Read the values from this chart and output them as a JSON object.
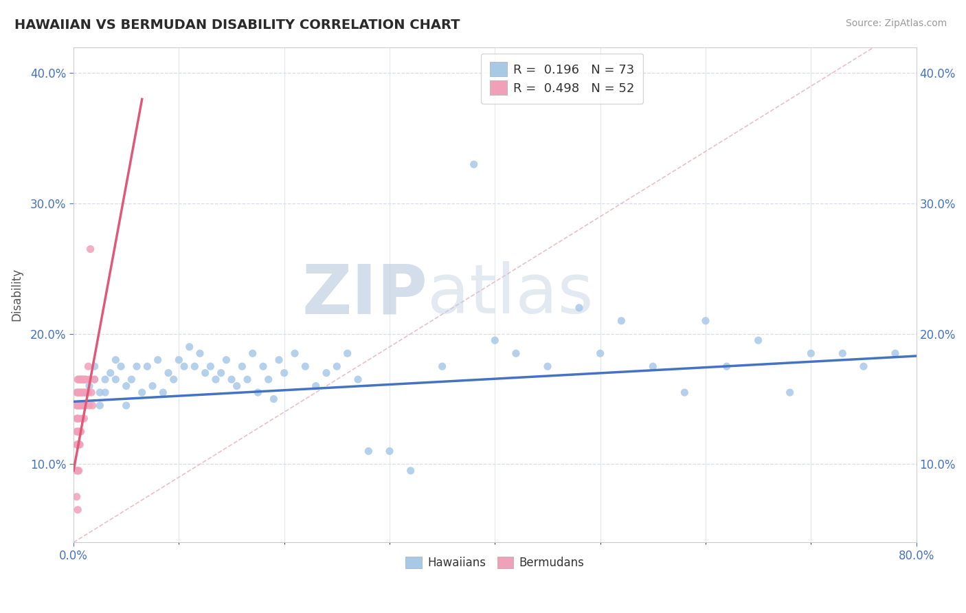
{
  "title": "HAWAIIAN VS BERMUDAN DISABILITY CORRELATION CHART",
  "source": "Source: ZipAtlas.com",
  "ylabel": "Disability",
  "legend_hawaiians": "Hawaiians",
  "legend_bermudans": "Bermudans",
  "R_hawaiians": 0.196,
  "N_hawaiians": 73,
  "R_bermudans": 0.498,
  "N_bermudans": 52,
  "xlim": [
    0.0,
    0.8
  ],
  "ylim": [
    0.04,
    0.42
  ],
  "yticks": [
    0.1,
    0.2,
    0.3,
    0.4
  ],
  "ytick_labels": [
    "10.0%",
    "20.0%",
    "30.0%",
    "40.0%"
  ],
  "color_hawaiians": "#a8c8e8",
  "color_bermudans": "#f0a0b8",
  "trendline_hawaiians": "#4472c4",
  "trendline_bermudans": "#e05878",
  "watermark_zip": "ZIP",
  "watermark_atlas": "atlas",
  "watermark_color_zip": "#c8d4e8",
  "watermark_color_atlas": "#b8cce0",
  "grid_color": "#d8dce8",
  "spine_color": "#cccccc",
  "tick_color": "#4472c4",
  "hawaiians_x": [
    0.01,
    0.01,
    0.015,
    0.02,
    0.02,
    0.025,
    0.025,
    0.03,
    0.03,
    0.035,
    0.04,
    0.04,
    0.045,
    0.05,
    0.05,
    0.055,
    0.06,
    0.065,
    0.07,
    0.075,
    0.08,
    0.085,
    0.09,
    0.095,
    0.1,
    0.105,
    0.11,
    0.115,
    0.12,
    0.125,
    0.13,
    0.135,
    0.14,
    0.145,
    0.15,
    0.155,
    0.16,
    0.165,
    0.17,
    0.175,
    0.18,
    0.185,
    0.19,
    0.195,
    0.2,
    0.21,
    0.22,
    0.23,
    0.24,
    0.25,
    0.26,
    0.27,
    0.28,
    0.3,
    0.32,
    0.35,
    0.38,
    0.4,
    0.42,
    0.45,
    0.48,
    0.5,
    0.52,
    0.55,
    0.58,
    0.6,
    0.62,
    0.65,
    0.68,
    0.7,
    0.73,
    0.75,
    0.78
  ],
  "hawaiians_y": [
    0.155,
    0.145,
    0.16,
    0.175,
    0.165,
    0.155,
    0.145,
    0.165,
    0.155,
    0.17,
    0.18,
    0.165,
    0.175,
    0.16,
    0.145,
    0.165,
    0.175,
    0.155,
    0.175,
    0.16,
    0.18,
    0.155,
    0.17,
    0.165,
    0.18,
    0.175,
    0.19,
    0.175,
    0.185,
    0.17,
    0.175,
    0.165,
    0.17,
    0.18,
    0.165,
    0.16,
    0.175,
    0.165,
    0.185,
    0.155,
    0.175,
    0.165,
    0.15,
    0.18,
    0.17,
    0.185,
    0.175,
    0.16,
    0.17,
    0.175,
    0.185,
    0.165,
    0.11,
    0.11,
    0.095,
    0.175,
    0.33,
    0.195,
    0.185,
    0.175,
    0.22,
    0.185,
    0.21,
    0.175,
    0.155,
    0.21,
    0.175,
    0.195,
    0.155,
    0.185,
    0.185,
    0.175,
    0.185
  ],
  "bermudans_x": [
    0.003,
    0.003,
    0.003,
    0.003,
    0.003,
    0.003,
    0.003,
    0.004,
    0.004,
    0.004,
    0.004,
    0.004,
    0.004,
    0.004,
    0.004,
    0.005,
    0.005,
    0.005,
    0.005,
    0.005,
    0.005,
    0.005,
    0.006,
    0.006,
    0.006,
    0.006,
    0.006,
    0.007,
    0.007,
    0.007,
    0.007,
    0.008,
    0.008,
    0.008,
    0.009,
    0.009,
    0.01,
    0.01,
    0.01,
    0.011,
    0.011,
    0.012,
    0.012,
    0.013,
    0.014,
    0.014,
    0.015,
    0.015,
    0.016,
    0.017,
    0.018,
    0.02
  ],
  "bermudans_y": [
    0.155,
    0.145,
    0.135,
    0.125,
    0.115,
    0.095,
    0.075,
    0.165,
    0.155,
    0.145,
    0.135,
    0.125,
    0.115,
    0.095,
    0.065,
    0.165,
    0.155,
    0.145,
    0.135,
    0.125,
    0.115,
    0.095,
    0.165,
    0.155,
    0.145,
    0.125,
    0.115,
    0.165,
    0.155,
    0.145,
    0.125,
    0.165,
    0.155,
    0.135,
    0.165,
    0.145,
    0.165,
    0.155,
    0.135,
    0.165,
    0.145,
    0.165,
    0.155,
    0.155,
    0.175,
    0.155,
    0.165,
    0.145,
    0.265,
    0.155,
    0.145,
    0.165
  ],
  "ref_line_color": "#e8c0c8",
  "ref_line_style": "--",
  "trendline_h_x0": 0.0,
  "trendline_h_y0": 0.148,
  "trendline_h_x1": 0.8,
  "trendline_h_y1": 0.183,
  "trendline_b_x0": 0.0,
  "trendline_b_y0": 0.095,
  "trendline_b_x1": 0.065,
  "trendline_b_y1": 0.38
}
